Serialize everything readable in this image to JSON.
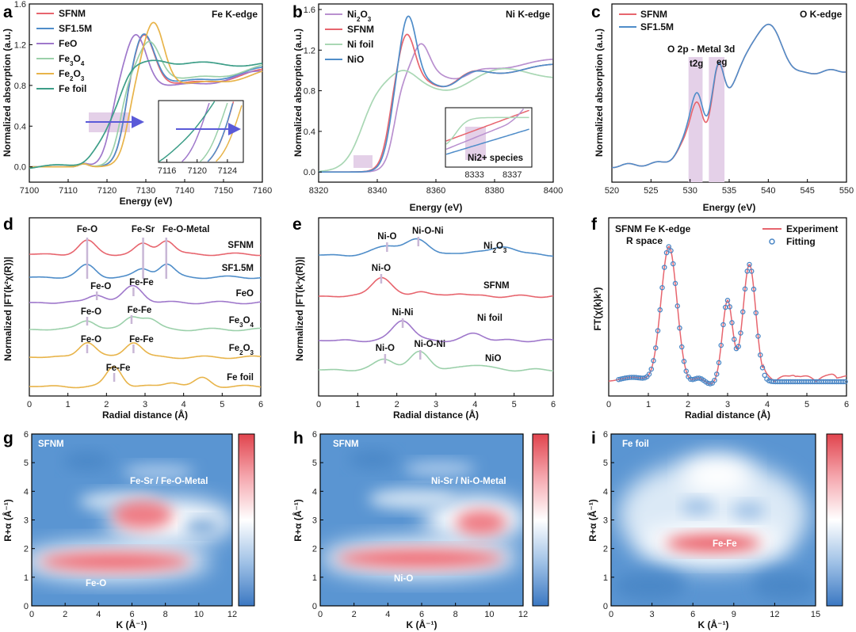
{
  "colors": {
    "sfnm": "#e7656e",
    "sf15": "#4f8dc9",
    "feo": "#9f78cb",
    "fe3o4": "#9bd0aa",
    "fe2o3": "#e8b44a",
    "fefoil": "#3d9e88",
    "ni2o3": "#b990cf",
    "nifoil": "#a9d7b4",
    "nio": "#4f8dc9",
    "arrow": "#5a5ad8",
    "shade": "#e4d0e8",
    "fit": "#4a86c5"
  },
  "panel_labels": [
    "a",
    "b",
    "c",
    "d",
    "e",
    "f",
    "g",
    "h",
    "i"
  ],
  "chart_data": [
    {
      "id": "a",
      "type": "line",
      "title": "Fe K-edge",
      "xlabel": "Energy (eV)",
      "ylabel": "Normalized absorption (a.u.)",
      "xlim": [
        7100,
        7160
      ],
      "ylim": [
        -0.15,
        1.6
      ],
      "xticks": [
        7100,
        7110,
        7120,
        7130,
        7140,
        7150,
        7160
      ],
      "yticks": [
        0.0,
        0.4,
        0.8,
        1.2,
        1.6
      ],
      "legend": [
        "SFNM",
        "SF1.5M",
        "FeO",
        "Fe3O4",
        "Fe2O3",
        "Fe foil"
      ],
      "series": [
        {
          "name": "SFNM",
          "color_key": "sfnm",
          "edge": 7124.5,
          "peak": 7129.5,
          "height": 1.33,
          "post": 0.9
        },
        {
          "name": "SF1.5M",
          "color_key": "sf15",
          "edge": 7124.5,
          "peak": 7129.5,
          "height": 1.34,
          "post": 0.92
        },
        {
          "name": "FeO",
          "color_key": "feo",
          "edge": 7121.0,
          "peak": 7127.5,
          "height": 1.32,
          "post": 0.88
        },
        {
          "name": "Fe3O4",
          "color_key": "fe3o4",
          "edge": 7123.5,
          "peak": 7131.0,
          "height": 1.25,
          "post": 0.95
        },
        {
          "name": "Fe2O3",
          "color_key": "fe2o3",
          "edge": 7125.5,
          "peak": 7132.0,
          "height": 1.44,
          "post": 0.9
        },
        {
          "name": "Fe foil",
          "color_key": "fefoil",
          "edge": 7113.0,
          "peak": 7133.0,
          "height": 1.02,
          "post": 0.99
        }
      ],
      "inset": {
        "xticks": [
          7116,
          7120,
          7124
        ],
        "xlim": [
          7115,
          7126
        ]
      }
    },
    {
      "id": "b",
      "type": "line",
      "title": "Ni K-edge",
      "xlabel": "Energy (eV)",
      "ylabel": "Normalized absorption (a.u.)",
      "xlim": [
        8320,
        8400
      ],
      "ylim": [
        -0.1,
        1.6
      ],
      "xticks": [
        8320,
        8340,
        8360,
        8380,
        8400
      ],
      "yticks": [
        0.0,
        0.4,
        0.8,
        1.2,
        1.6
      ],
      "legend": [
        "Ni2O3",
        "SFNM",
        "Ni foil",
        "NiO"
      ],
      "series": [
        {
          "name": "Ni2O3",
          "color_key": "ni2o3",
          "edge": 8346.0,
          "peak": 8355.0,
          "height": 1.27
        },
        {
          "name": "SFNM",
          "color_key": "sfnm",
          "edge": 8344.0,
          "peak": 8350.0,
          "height": 1.38
        },
        {
          "name": "Ni foil",
          "color_key": "nifoil",
          "edge": 8333.0,
          "peak": 8348.0,
          "height": 0.93
        },
        {
          "name": "NiO",
          "color_key": "nio",
          "edge": 8344.5,
          "peak": 8350.5,
          "height": 1.56
        }
      ],
      "inset": {
        "label": "Ni2+ species",
        "xticks": [
          8333,
          8337
        ]
      }
    },
    {
      "id": "c",
      "type": "line",
      "title": "O K-edge",
      "xlabel": "Energy (eV)",
      "ylabel": "Normalized absorption (a.u.)",
      "xlim": [
        520,
        550
      ],
      "xticks": [
        520,
        525,
        530,
        535,
        540,
        545,
        550
      ],
      "legend": [
        "SFNM",
        "SF1.5M"
      ],
      "annotation": "O 2p - Metal 3d",
      "bands": [
        "t2g",
        "eg"
      ],
      "band_ranges": [
        [
          529.8,
          531.6
        ],
        [
          532.4,
          534.4
        ]
      ]
    },
    {
      "id": "d",
      "type": "line",
      "xlabel": "Radial distance (Å)",
      "ylabel": "Normalized |FT(k²χ(R))|",
      "xlim": [
        0,
        6
      ],
      "xticks": [
        0,
        1,
        2,
        3,
        4,
        5,
        6
      ],
      "markers": [
        1.5,
        2.95,
        3.55
      ],
      "series": [
        {
          "name": "SFNM",
          "color_key": "sfnm",
          "labels": [
            "Fe-O",
            "Fe-Sr",
            "Fe-O-Metal"
          ]
        },
        {
          "name": "SF1.5M",
          "color_key": "sf15"
        },
        {
          "name": "FeO",
          "color_key": "feo",
          "labels": [
            "Fe-O",
            "Fe-Fe"
          ]
        },
        {
          "name": "Fe3O4",
          "color_key": "fe3o4",
          "labels": [
            "Fe-O",
            "Fe-Fe"
          ]
        },
        {
          "name": "Fe2O3",
          "color_key": "fe2o3",
          "labels": [
            "Fe-O",
            "Fe-Fe"
          ]
        },
        {
          "name": "Fe foil",
          "color_key": "fe2o3",
          "labels": [
            "Fe-Fe"
          ]
        }
      ]
    },
    {
      "id": "e",
      "type": "line",
      "xlabel": "Radial distance (Å)",
      "ylabel": "Normalized |FT(k³χ(R))|",
      "xlim": [
        0,
        6
      ],
      "xticks": [
        0,
        1,
        2,
        3,
        4,
        5,
        6
      ],
      "series": [
        {
          "name": "Ni2O3",
          "color_key": "nio",
          "labels": [
            "Ni-O",
            "Ni-O-Ni"
          ]
        },
        {
          "name": "SFNM",
          "color_key": "sfnm",
          "labels": [
            "Ni-O"
          ]
        },
        {
          "name": "Ni foil",
          "color_key": "feo",
          "labels": [
            "Ni-Ni"
          ]
        },
        {
          "name": "NiO",
          "color_key": "fe3o4",
          "labels": [
            "Ni-O",
            "Ni-O-Ni"
          ]
        }
      ]
    },
    {
      "id": "f",
      "type": "line+scatter",
      "title": "SFNM Fe K-edge",
      "subtitle": "R space",
      "xlabel": "Radial distance (Å)",
      "ylabel": "FT(χ(k)k³)",
      "xlim": [
        0,
        6
      ],
      "xticks": [
        0,
        1,
        2,
        3,
        4,
        5,
        6
      ],
      "legend": [
        "Experiment",
        "Fitting"
      ],
      "peaks": [
        1.5,
        3.0,
        3.55
      ]
    },
    {
      "id": "g",
      "type": "heatmap",
      "title": "SFNM",
      "xlabel": "K (Å⁻¹)",
      "ylabel": "R+α (Å⁻¹)",
      "xlim": [
        0,
        12
      ],
      "ylim": [
        0,
        6
      ],
      "xticks": [
        0,
        2,
        4,
        6,
        8,
        10,
        12
      ],
      "yticks": [
        0,
        1,
        2,
        3,
        4,
        5,
        6
      ],
      "labels": [
        "Fe-Sr / Fe-O-Metal",
        "Fe-O"
      ]
    },
    {
      "id": "h",
      "type": "heatmap",
      "title": "SFNM",
      "xlabel": "K (Å⁻¹)",
      "ylabel": "R+α (Å⁻¹)",
      "xlim": [
        0,
        12
      ],
      "ylim": [
        0,
        6
      ],
      "xticks": [
        0,
        2,
        4,
        6,
        8,
        10,
        12
      ],
      "yticks": [
        0,
        1,
        2,
        3,
        4,
        5,
        6
      ],
      "labels": [
        "Ni-Sr / Ni-O-Metal",
        "Ni-O"
      ]
    },
    {
      "id": "i",
      "type": "heatmap",
      "title": "Fe foil",
      "xlabel": "K (Å⁻¹)",
      "ylabel": "R+α (Å⁻¹)",
      "xlim": [
        0,
        15
      ],
      "ylim": [
        0,
        6
      ],
      "xticks": [
        0,
        3,
        6,
        9,
        12,
        15
      ],
      "yticks": [
        0,
        1,
        2,
        3,
        4,
        5,
        6
      ],
      "labels": [
        "Fe-Fe"
      ]
    }
  ]
}
